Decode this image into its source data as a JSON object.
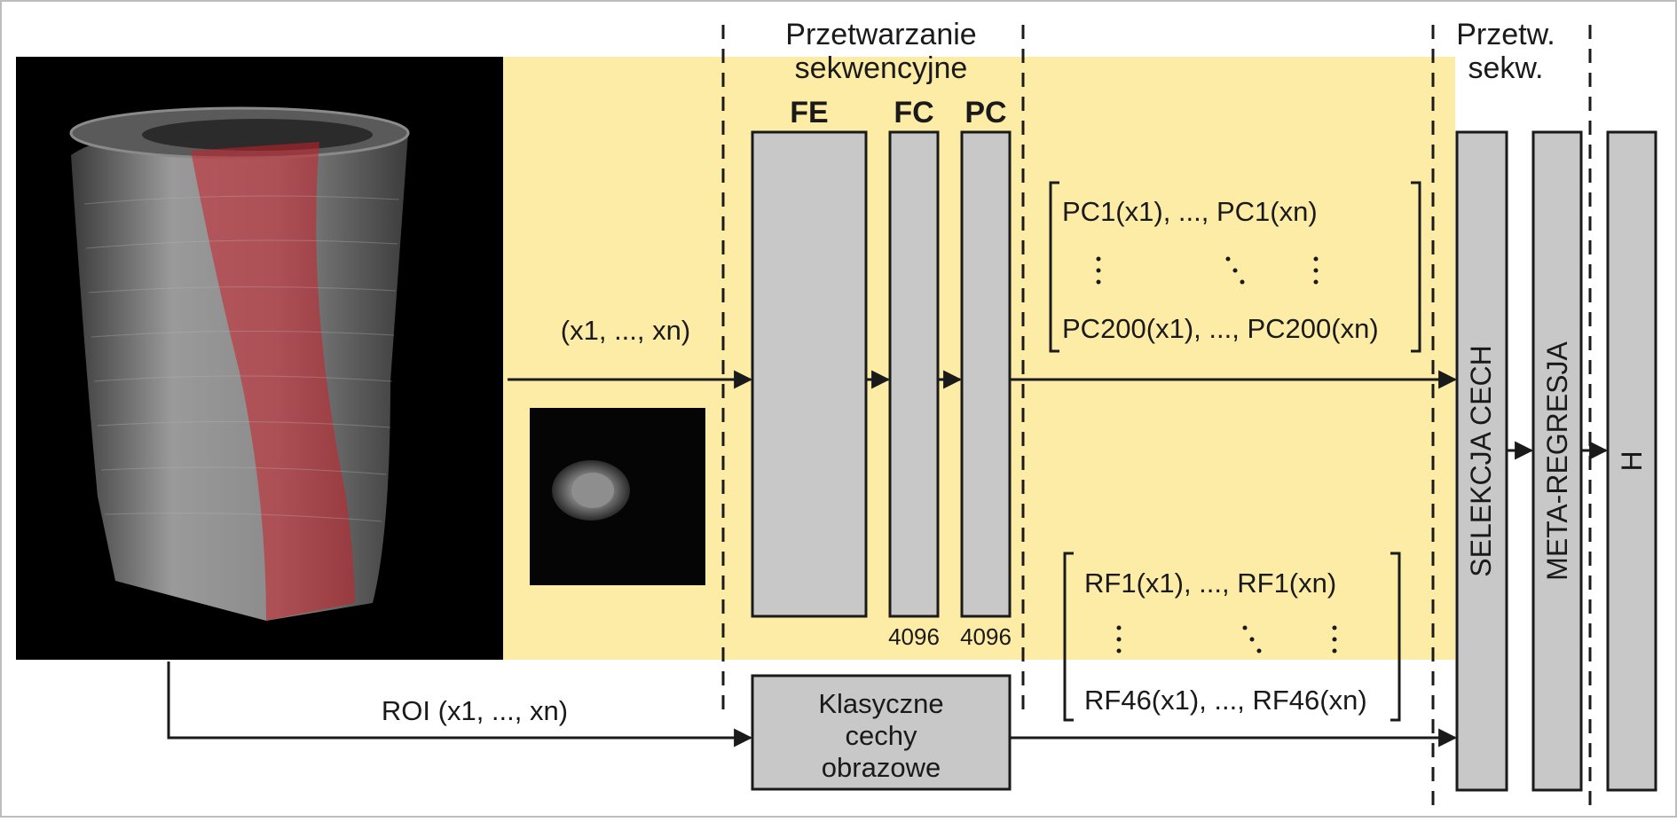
{
  "headers": {
    "sequential_processing": [
      "Przetwarzanie",
      "sekwencyjne"
    ],
    "sequential_processing_short": [
      "Przetw.",
      "sekw."
    ]
  },
  "cnn": {
    "fe_label": "FE",
    "fc_label": "FC",
    "pc_label": "PC",
    "fc_size": "4096",
    "pc_size": "4096"
  },
  "input": {
    "sequence_label": "(x1, ..., xn)",
    "roi_label": "ROI (x1, ..., xn)"
  },
  "classic": {
    "lines": [
      "Klasyczne",
      "cechy",
      "obrazowe"
    ]
  },
  "pc_matrix": {
    "row_first": "PC1(x1), ..., PC1(xn)",
    "row_last": "PC200(x1), ..., PC200(xn)"
  },
  "rf_matrix": {
    "row_first": "RF1(x1), ..., RF1(xn)",
    "row_last": "RF46(x1), ..., RF46(xn)"
  },
  "right_blocks": {
    "feature_selection": "SELEKCJA CECH",
    "meta_regression": "META-REGRESJA",
    "output": "H"
  },
  "colors": {
    "highlight": "#fdeca6",
    "block_fill": "#c8c8c8",
    "stroke": "#1a1a1a",
    "roi_red": "#c8202a"
  }
}
